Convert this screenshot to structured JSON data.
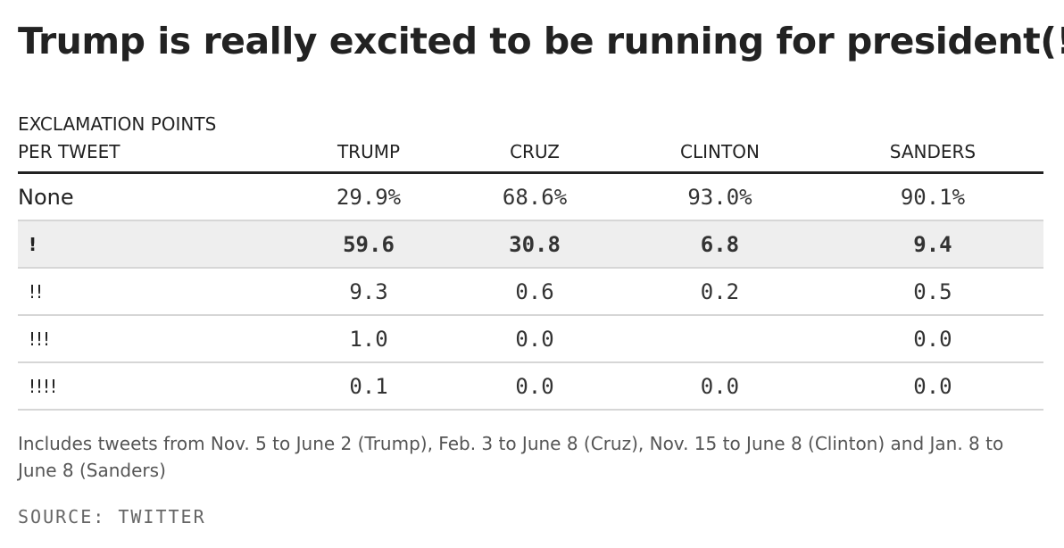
{
  "chart_data": {
    "type": "table",
    "title": "Trump is really excited to be running for president(!)",
    "row_header": [
      "EXCLAMATION POINTS",
      "PER TWEET"
    ],
    "columns": [
      "TRUMP",
      "CRUZ",
      "CLINTON",
      "SANDERS"
    ],
    "rows": [
      {
        "label": "None",
        "values": [
          "29.9%",
          "68.6%",
          "93.0%",
          "90.1%"
        ],
        "highlight": false
      },
      {
        "label": "!",
        "values": [
          "59.6",
          "30.8",
          "6.8",
          "9.4"
        ],
        "highlight": true
      },
      {
        "label": "!!",
        "values": [
          "9.3",
          "0.6",
          "0.2",
          "0.5"
        ],
        "highlight": false
      },
      {
        "label": "!!!",
        "values": [
          "1.0",
          "0.0",
          "",
          "0.0"
        ],
        "highlight": false
      },
      {
        "label": "!!!!",
        "values": [
          "0.1",
          "0.0",
          "0.0",
          "0.0"
        ],
        "highlight": false
      }
    ],
    "note": "Includes tweets from Nov. 5 to June 2 (Trump), Feb. 3 to June 8 (Cruz), Nov. 15 to June 8 (Clinton) and Jan. 8 to June 8 (Sanders)",
    "source": "SOURCE: TWITTER"
  }
}
